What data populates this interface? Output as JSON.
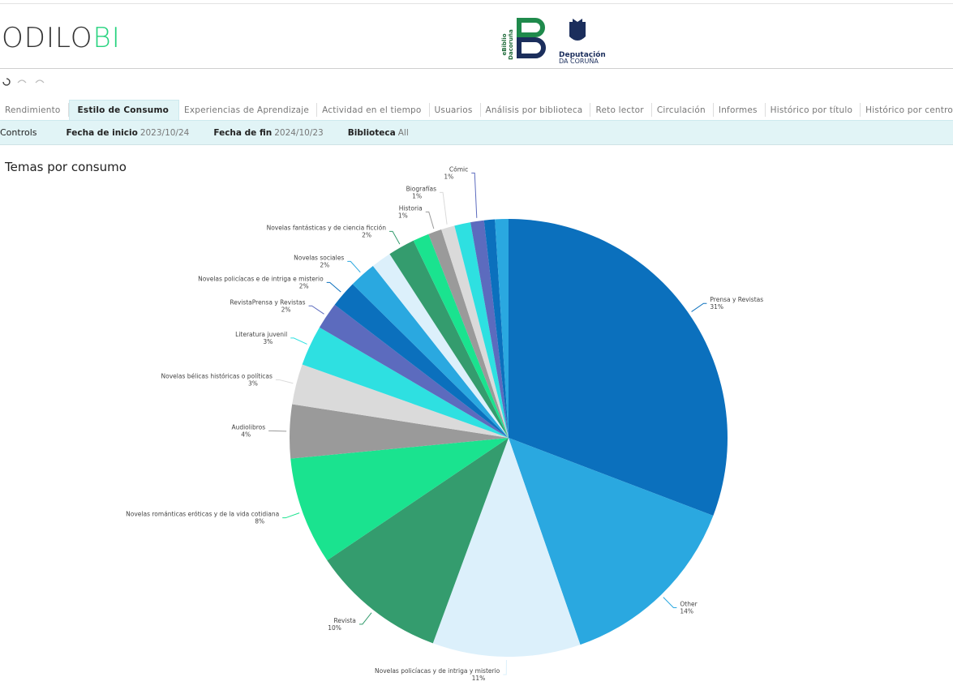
{
  "header": {
    "logo_main": "ODILO",
    "logo_accent": "BI",
    "partner_vertical_1": "eBiblio",
    "partner_vertical_2": "Dacoruña",
    "partner_name": "Deputación",
    "partner_sub": "DA CORUÑA"
  },
  "tabs": {
    "items": [
      "Rendimiento",
      "Estilo de Consumo",
      "Experiencias de Aprendizaje",
      "Actividad en el tiempo",
      "Usuarios",
      "Análisis por biblioteca",
      "Reto lector",
      "Circulación",
      "Informes",
      "Histórico por título",
      "Histórico por centro"
    ],
    "active": 1
  },
  "filters": {
    "controls": "Controls",
    "items": [
      {
        "label": "Fecha de inicio",
        "value": "2023/10/24"
      },
      {
        "label": "Fecha de fin",
        "value": "2024/10/23"
      },
      {
        "label": "Biblioteca",
        "value": "All"
      }
    ]
  },
  "chart_data": {
    "type": "pie",
    "title": "Temas por consumo",
    "categories": [
      "Prensa y Revistas",
      "Other",
      "Novelas policíacas y de intriga y misterio",
      "Revista",
      "Novelas románticas eróticas y de la vida cotidiana",
      "Audiolibros",
      "Novelas bélicas históricas o políticas",
      "Literatura juvenil",
      "RevistaPrensa y Revistas",
      "Novelas policíacas e de intriga e misterio",
      "Novelas sociales",
      null,
      "Novelas fantásticas y de ciencia ficción",
      null,
      "Historia",
      "Biografías",
      null,
      "Cómic",
      null,
      null
    ],
    "values": [
      31,
      14,
      11,
      10,
      8,
      4,
      3,
      3,
      2,
      2,
      2,
      1.5,
      2,
      1.2,
      1,
      1,
      1.2,
      1,
      0.8,
      1
    ],
    "value_labels": [
      "31%",
      "14%",
      "11%",
      "10%",
      "8%",
      "4%",
      "3%",
      "3%",
      "2%",
      "2%",
      "2%",
      null,
      "2%",
      null,
      "1%",
      "1%",
      null,
      "1%",
      null,
      null
    ],
    "colors": [
      "#0b70bd",
      "#2aa8e0",
      "#dcf0fb",
      "#349c6e",
      "#1ae38f",
      "#9a9a9a",
      "#dadada",
      "#2ee0e1",
      "#5c6bbe",
      "#0b70bd",
      "#2aa8e0",
      "#dcf0fb",
      "#349c6e",
      "#1ae38f",
      "#9a9a9a",
      "#dadada",
      "#2ee0e1",
      "#5c6bbe",
      "#0b70bd",
      "#2aa8e0"
    ]
  }
}
